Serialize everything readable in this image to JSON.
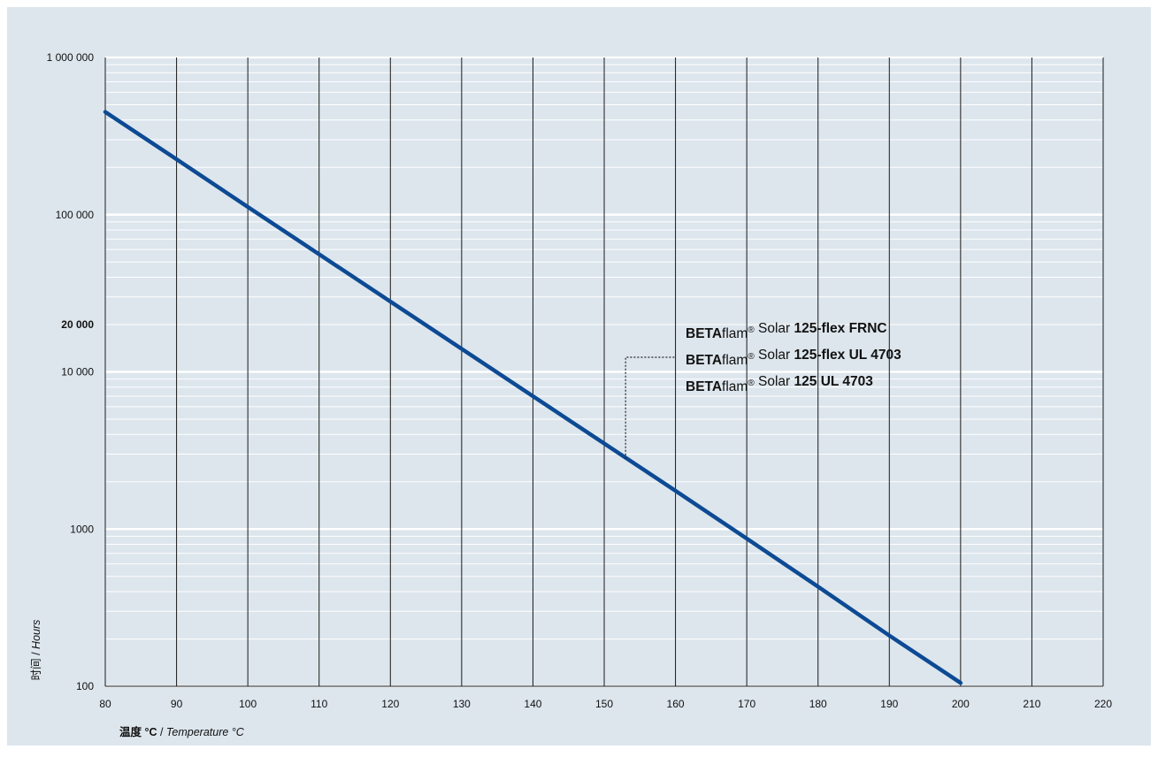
{
  "chart_data": {
    "type": "line",
    "xlabel": {
      "main": "温度 °C",
      "separator": " / ",
      "italic": "Temperature °C"
    },
    "ylabel": {
      "main": "时间",
      "separator": " / ",
      "italic": "Hours"
    },
    "xlim": [
      80,
      220
    ],
    "ylim": [
      100,
      1000000
    ],
    "y_scale": "log",
    "x_ticks": [
      80,
      90,
      100,
      110,
      120,
      130,
      140,
      150,
      160,
      170,
      180,
      190,
      200,
      210,
      220
    ],
    "x_tick_labels": [
      "80",
      "90",
      "100",
      "110",
      "120",
      "130",
      "140",
      "150",
      "160",
      "170",
      "180",
      "190",
      "200",
      "210",
      "220"
    ],
    "y_ticks": [
      {
        "value": 1000000,
        "label": "1 000 000",
        "bold": false
      },
      {
        "value": 100000,
        "label": "100 000",
        "bold": false
      },
      {
        "value": 20000,
        "label": "20 000",
        "bold": true
      },
      {
        "value": 10000,
        "label": "10 000",
        "bold": false
      },
      {
        "value": 1000,
        "label": "1000",
        "bold": false
      },
      {
        "value": 100,
        "label": "100",
        "bold": false
      }
    ],
    "grid": {
      "vertical": true,
      "horizontal_minor_log": true
    },
    "series": [
      {
        "color": "#0d4a94",
        "x": [
          80,
          90,
          100,
          110,
          120,
          130,
          140,
          150,
          160,
          170,
          180,
          190,
          200
        ],
        "y": [
          450000,
          225000,
          112000,
          56000,
          28000,
          14000,
          7000,
          3500,
          1750,
          870,
          430,
          210,
          105
        ]
      }
    ],
    "annotation": {
      "anchor": {
        "x": 153,
        "y": 2800
      },
      "lines": [
        [
          {
            "text": "BETA",
            "bold": true
          },
          {
            "text": "flam",
            "bold": false
          },
          {
            "text": "®",
            "bold": false,
            "superscript": true
          },
          {
            "text": " Solar ",
            "bold": false
          },
          {
            "text": "125-flex FRNC",
            "bold": true
          }
        ],
        [
          {
            "text": "BETA",
            "bold": true
          },
          {
            "text": "flam",
            "bold": false
          },
          {
            "text": "®",
            "bold": false,
            "superscript": true
          },
          {
            "text": " Solar ",
            "bold": false
          },
          {
            "text": "125-flex UL 4703",
            "bold": true
          }
        ],
        [
          {
            "text": "BETA",
            "bold": true
          },
          {
            "text": "flam",
            "bold": false
          },
          {
            "text": "®",
            "bold": false,
            "superscript": true
          },
          {
            "text": " Solar ",
            "bold": false
          },
          {
            "text": "125 UL 4703",
            "bold": true
          }
        ]
      ]
    },
    "colors": {
      "background": "#dde6ed",
      "grid_vertical": "#1a1a1a",
      "grid_minor": "#ffffff",
      "line": "#0d4a94"
    }
  }
}
